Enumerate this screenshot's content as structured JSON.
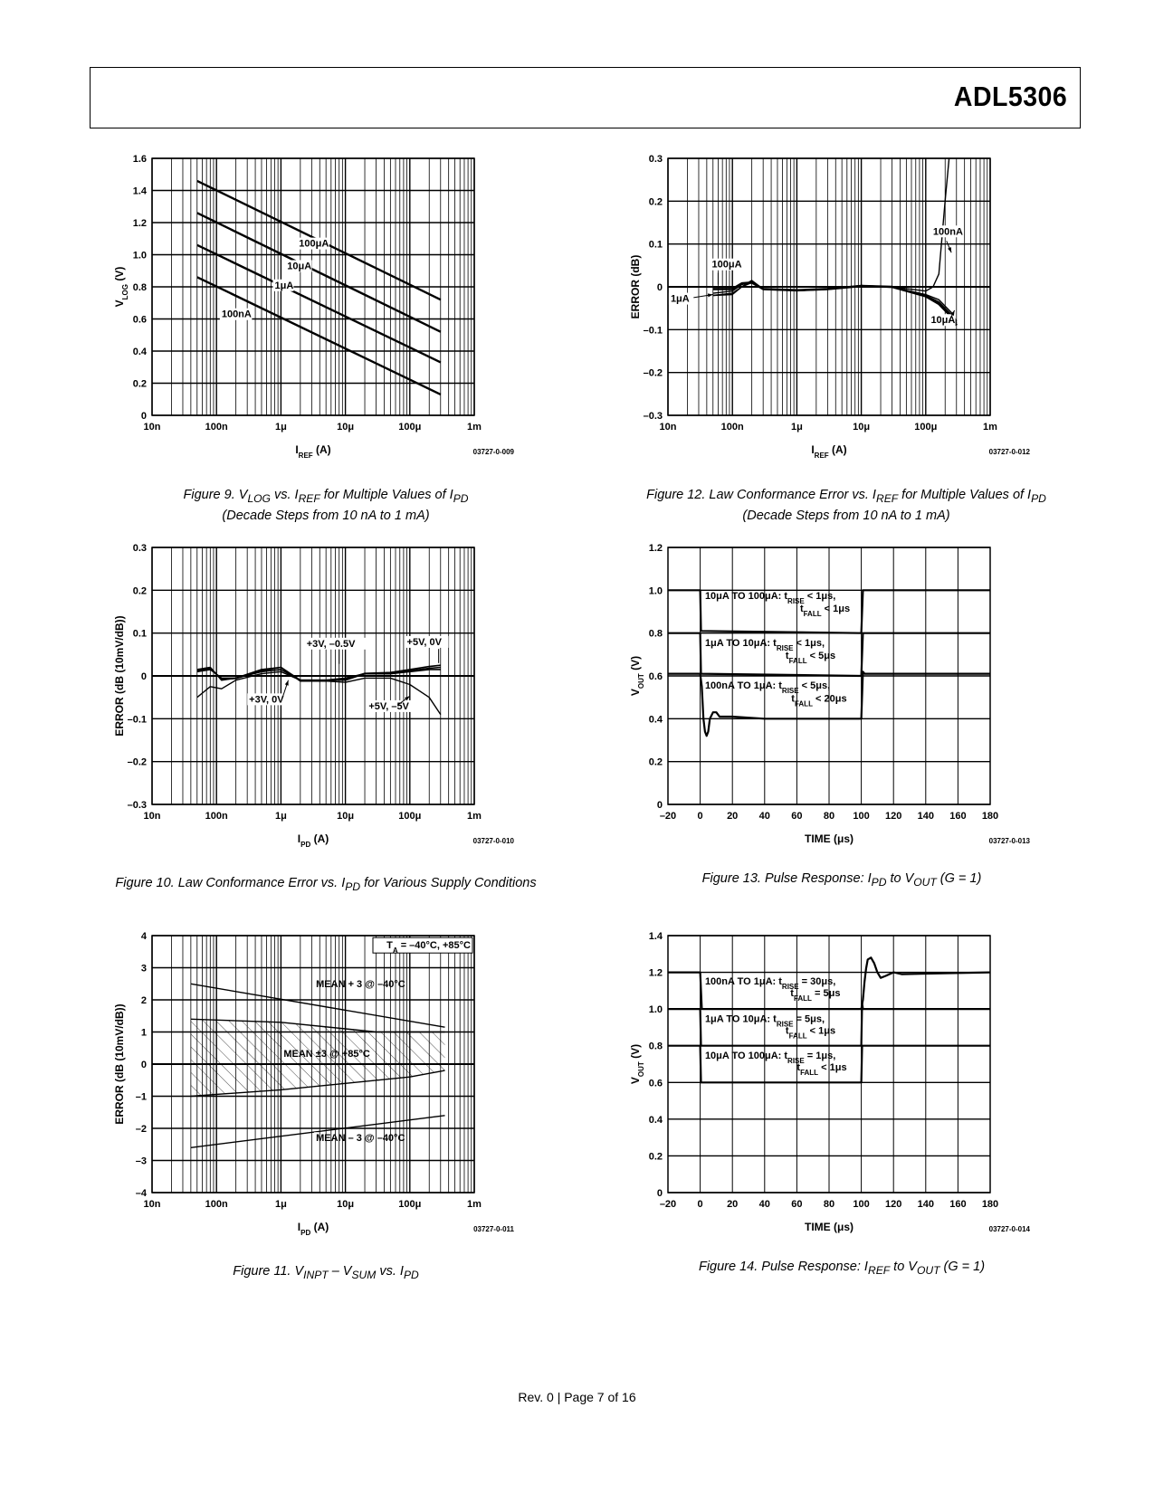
{
  "header": {
    "part_number": "ADL5306"
  },
  "footer": {
    "text": "Rev. 0 | Page 7 of 16"
  },
  "figures": [
    {
      "id": "fig9",
      "caption_html": "Figure 9. V<sub>LOG</sub> vs. I<sub>REF</sub> for Multiple Values of I<sub>PD</sub><br>(Decade Steps from 10 nA to 1 mA)",
      "code": "03727-0-009",
      "xlabel_html": "I<tspan baseline-shift='sub' font-size='8'>REF</tspan> (A)",
      "ylabel_html": "V<tspan baseline-shift='sub' font-size='8'>LOG</tspan> (V)"
    },
    {
      "id": "fig12",
      "caption_html": "Figure 12. Law Conformance Error vs. I<sub>REF</sub> for Multiple Values of I<sub>PD</sub><br>(Decade Steps from 10 nA to 1 mA)",
      "code": "03727-0-012",
      "xlabel_html": "I<tspan baseline-shift='sub' font-size='8'>REF</tspan> (A)",
      "ylabel_html": "ERROR (dB)"
    },
    {
      "id": "fig10",
      "caption_html": "Figure 10. Law Conformance Error vs. I<sub>PD</sub> for Various Supply Conditions",
      "code": "03727-0-010",
      "xlabel_html": "I<tspan baseline-shift='sub' font-size='8'>PD</tspan> (A)",
      "ylabel_html": "ERROR (dB (10mV/dB))"
    },
    {
      "id": "fig13",
      "caption_html": "Figure 13. Pulse Response: I<sub>PD</sub> to V<sub>OUT</sub> (G = 1)",
      "code": "03727-0-013",
      "xlabel_html": "TIME (μs)",
      "ylabel_html": "V<tspan baseline-shift='sub' font-size='8'>OUT</tspan> (V)"
    },
    {
      "id": "fig11",
      "caption_html": "Figure 11. V<sub>INPT</sub> – V<sub>SUM</sub> vs. I<sub>PD</sub>",
      "code": "03727-0-011",
      "xlabel_html": "I<tspan baseline-shift='sub' font-size='8'>PD</tspan> (A)",
      "ylabel_html": "ERROR (dB (10mV/dB))"
    },
    {
      "id": "fig14",
      "caption_html": "Figure 14. Pulse Response: I<sub>REF</sub> to V<sub>OUT</sub> (G = 1)",
      "code": "03727-0-014",
      "xlabel_html": "TIME (μs)",
      "ylabel_html": "V<tspan baseline-shift='sub' font-size='8'>OUT</tspan> (V)"
    }
  ],
  "chart_data": [
    {
      "id": "fig9",
      "type": "line",
      "xscale": "log",
      "xlim": [
        1e-08,
        0.001
      ],
      "ylim": [
        0,
        1.6
      ],
      "xticks": [
        [
          "10n",
          1e-08
        ],
        [
          "100n",
          1e-07
        ],
        [
          "1μ",
          1e-06
        ],
        [
          "10μ",
          1e-05
        ],
        [
          "100μ",
          0.0001
        ],
        [
          "1m",
          0.001
        ]
      ],
      "yticks": [
        [
          "0",
          0
        ],
        [
          "0.2",
          0.2
        ],
        [
          "0.4",
          0.4
        ],
        [
          "0.6",
          0.6
        ],
        [
          "0.8",
          0.8
        ],
        [
          "1.0",
          1.0
        ],
        [
          "1.2",
          1.2
        ],
        [
          "1.4",
          1.4
        ],
        [
          "1.6",
          1.6
        ]
      ],
      "series": [
        {
          "name": "100μA",
          "x": [
            5e-08,
            0.0003
          ],
          "y": [
            1.46,
            0.72
          ]
        },
        {
          "name": "10μA",
          "x": [
            5e-08,
            0.0003
          ],
          "y": [
            1.26,
            0.52
          ]
        },
        {
          "name": "1μA",
          "x": [
            5e-08,
            0.0003
          ],
          "y": [
            1.06,
            0.33
          ]
        },
        {
          "name": "100nA",
          "x": [
            5e-08,
            0.0003
          ],
          "y": [
            0.86,
            0.13
          ]
        }
      ]
    },
    {
      "id": "fig12",
      "type": "line",
      "xscale": "log",
      "xlim": [
        1e-08,
        0.001
      ],
      "ylim": [
        -0.3,
        0.3
      ],
      "xticks": [
        [
          "10n",
          1e-08
        ],
        [
          "100n",
          1e-07
        ],
        [
          "1μ",
          1e-06
        ],
        [
          "10μ",
          1e-05
        ],
        [
          "100μ",
          0.0001
        ],
        [
          "1m",
          0.001
        ]
      ],
      "yticks": [
        [
          "–0.3",
          -0.3
        ],
        [
          "–0.2",
          -0.2
        ],
        [
          "–0.1",
          -0.1
        ],
        [
          "0",
          0
        ],
        [
          "0.1",
          0.1
        ],
        [
          "0.2",
          0.2
        ],
        [
          "0.3",
          0.3
        ]
      ],
      "series": [
        {
          "name": "100nA",
          "x": [
            5e-08,
            1e-07,
            1.4e-07,
            2e-07,
            3e-07,
            1e-06,
            3e-06,
            1e-05,
            3e-05,
            0.0001,
            0.00013,
            0.00016,
            0.0002,
            0.00023
          ],
          "y": [
            -0.02,
            -0.015,
            0,
            0.015,
            -0.005,
            -0.008,
            -0.005,
            0.003,
            0,
            -0.01,
            0.0,
            0.03,
            0.2,
            0.3
          ]
        },
        {
          "name": "10μA",
          "x": [
            5e-08,
            1e-07,
            1.4e-07,
            2e-07,
            3e-07,
            1e-06,
            3e-06,
            1e-05,
            3e-05,
            0.0001,
            0.00016,
            0.00025,
            0.0003
          ],
          "y": [
            -0.015,
            -0.01,
            0.005,
            0.012,
            -0.005,
            -0.008,
            -0.005,
            0.003,
            0,
            -0.02,
            -0.035,
            -0.065,
            -0.085
          ]
        },
        {
          "name": "100μA",
          "x": [
            5e-08,
            1e-07,
            1.4e-07,
            2e-07,
            3e-07,
            1e-06,
            3e-06,
            1e-05,
            3e-05,
            0.0001,
            0.00016,
            0.00025,
            0.0003
          ],
          "y": [
            -0.005,
            -0.005,
            0.008,
            0.01,
            -0.005,
            -0.008,
            -0.005,
            0.002,
            0,
            -0.022,
            -0.04,
            -0.07,
            -0.09
          ]
        },
        {
          "name": "1μA",
          "x": [
            5e-08,
            1e-07,
            1.4e-07,
            2e-07,
            3e-07,
            1e-06,
            3e-06,
            1e-05,
            3e-05,
            0.0001,
            0.00016,
            0.00025,
            0.0003
          ],
          "y": [
            -0.02,
            -0.018,
            0.0,
            0.01,
            -0.006,
            -0.009,
            -0.006,
            0.002,
            -0.001,
            -0.018,
            -0.03,
            -0.06,
            -0.08
          ]
        }
      ]
    },
    {
      "id": "fig10",
      "type": "line",
      "xscale": "log",
      "xlim": [
        1e-08,
        0.001
      ],
      "ylim": [
        -0.3,
        0.3
      ],
      "xticks": [
        [
          "10n",
          1e-08
        ],
        [
          "100n",
          1e-07
        ],
        [
          "1μ",
          1e-06
        ],
        [
          "10μ",
          1e-05
        ],
        [
          "100μ",
          0.0001
        ],
        [
          "1m",
          0.001
        ]
      ],
      "yticks": [
        [
          "–0.3",
          -0.3
        ],
        [
          "–0.2",
          -0.2
        ],
        [
          "–0.1",
          -0.1
        ],
        [
          "0",
          0
        ],
        [
          "0.1",
          0.1
        ],
        [
          "0.2",
          0.2
        ],
        [
          "0.3",
          0.3
        ]
      ],
      "series": [
        {
          "name": "+3V, 0V",
          "x": [
            5e-08,
            8e-08,
            1.2e-07,
            2e-07,
            5e-07,
            1e-06,
            2e-06,
            5e-06,
            1e-05,
            2e-05,
            5e-05,
            0.0001,
            0.0002,
            0.0003
          ],
          "y": [
            0.01,
            0.015,
            -0.005,
            -0.005,
            0.01,
            0.015,
            -0.01,
            -0.01,
            -0.01,
            0.005,
            0.005,
            0.01,
            0.015,
            0.015
          ]
        },
        {
          "name": "+3V, –0.5V",
          "x": [
            5e-08,
            8e-08,
            1.2e-07,
            2e-07,
            5e-07,
            1e-06,
            2e-06,
            5e-06,
            1e-05,
            2e-05,
            5e-05,
            0.0001,
            0.0002,
            0.0003
          ],
          "y": [
            0.015,
            0.02,
            -0.01,
            -0.005,
            0.015,
            0.02,
            -0.01,
            -0.01,
            -0.005,
            0.005,
            0.005,
            0.012,
            0.018,
            0.02
          ]
        },
        {
          "name": "+5V, 0V",
          "x": [
            5e-08,
            8e-08,
            1.2e-07,
            2e-07,
            5e-07,
            1e-06,
            2e-06,
            5e-06,
            1e-05,
            2e-05,
            5e-05,
            0.0001,
            0.0002,
            0.0003
          ],
          "y": [
            0.012,
            0.018,
            -0.008,
            -0.006,
            0.012,
            0.02,
            -0.012,
            -0.012,
            -0.008,
            0.006,
            0.008,
            0.015,
            0.022,
            0.025
          ]
        },
        {
          "name": "+5V, –5V",
          "x": [
            5e-08,
            8e-08,
            1.2e-07,
            2e-07,
            5e-07,
            1e-06,
            2e-06,
            5e-06,
            1e-05,
            2e-05,
            5e-05,
            0.0001,
            0.0002,
            0.0003
          ],
          "y": [
            -0.05,
            -0.025,
            -0.03,
            -0.01,
            0.005,
            0.01,
            -0.01,
            -0.012,
            -0.015,
            -0.005,
            -0.005,
            -0.02,
            -0.05,
            -0.09
          ]
        }
      ],
      "annotations": [
        "+3V, –0.5V",
        "+5V, 0V",
        "+3V, 0V",
        "+5V, –5V"
      ]
    },
    {
      "id": "fig13",
      "type": "line",
      "xlim": [
        -20,
        180
      ],
      "ylim": [
        0,
        1.2
      ],
      "xticks": [
        [
          "–20",
          -20
        ],
        [
          "0",
          0
        ],
        [
          "20",
          20
        ],
        [
          "40",
          40
        ],
        [
          "60",
          60
        ],
        [
          "80",
          80
        ],
        [
          "100",
          100
        ],
        [
          "120",
          120
        ],
        [
          "140",
          140
        ],
        [
          "160",
          160
        ],
        [
          "180",
          180
        ]
      ],
      "yticks": [
        [
          "0",
          0
        ],
        [
          "0.2",
          0.2
        ],
        [
          "0.4",
          0.4
        ],
        [
          "0.6",
          0.6
        ],
        [
          "0.8",
          0.8
        ],
        [
          "1.0",
          1.0
        ],
        [
          "1.2",
          1.2
        ]
      ],
      "series": [
        {
          "name": "10μA TO 100μA",
          "x": [
            -20,
            0,
            0.5,
            1,
            100,
            101,
            180
          ],
          "y": [
            1.0,
            1.0,
            0.81,
            0.81,
            0.8,
            1.0,
            1.0
          ]
        },
        {
          "name": "1μA TO 10μA",
          "x": [
            -20,
            0,
            0.5,
            1,
            100,
            101,
            180
          ],
          "y": [
            0.8,
            0.8,
            0.61,
            0.61,
            0.6,
            0.8,
            0.8
          ]
        },
        {
          "name": "100nA TO 1μA",
          "x": [
            -20,
            0,
            1,
            2,
            3,
            4,
            5,
            6,
            8,
            10,
            12,
            15,
            20,
            40,
            100,
            101,
            102,
            180
          ],
          "y": [
            0.61,
            0.61,
            0.55,
            0.4,
            0.34,
            0.32,
            0.34,
            0.4,
            0.43,
            0.43,
            0.41,
            0.41,
            0.41,
            0.4,
            0.4,
            0.62,
            0.61,
            0.61
          ]
        }
      ],
      "annotations": [
        {
          "text": "10μA TO 100μA: tRISE < 1μs, tFALL < 1μs"
        },
        {
          "text": "1μA TO 10μA: tRISE < 1μs, tFALL < 5μs"
        },
        {
          "text": "100nA TO 1μA: tRISE < 5μs, tFALL < 20μs"
        }
      ]
    },
    {
      "id": "fig11",
      "type": "line",
      "xscale": "log",
      "xlim": [
        1e-08,
        0.001
      ],
      "ylim": [
        -4,
        4
      ],
      "xticks": [
        [
          "10n",
          1e-08
        ],
        [
          "100n",
          1e-07
        ],
        [
          "1μ",
          1e-06
        ],
        [
          "10μ",
          1e-05
        ],
        [
          "100μ",
          0.0001
        ],
        [
          "1m",
          0.001
        ]
      ],
      "yticks": [
        [
          "–4",
          -4
        ],
        [
          "–3",
          -3
        ],
        [
          "–2",
          -2
        ],
        [
          "–1",
          -1
        ],
        [
          "0",
          0
        ],
        [
          "1",
          1
        ],
        [
          "2",
          2
        ],
        [
          "3",
          3
        ],
        [
          "4",
          4
        ]
      ],
      "series": [
        {
          "name": "MEAN + 3 @ –40°C",
          "x": [
            4e-08,
            0.00035
          ],
          "y": [
            2.5,
            1.15
          ]
        },
        {
          "name": "MEAN – 3 @ –40°C",
          "x": [
            4e-08,
            0.00035
          ],
          "y": [
            -2.6,
            -1.6
          ]
        },
        {
          "name": "MEAN ±3 @ +85°C upper",
          "x": [
            4e-08,
            1e-06,
            1e-05,
            3e-05,
            0.00035
          ],
          "y": [
            1.4,
            1.3,
            1.1,
            1.0,
            1.0
          ]
        },
        {
          "name": "MEAN ±3 @ +85°C lower",
          "x": [
            4e-08,
            1e-06,
            1e-05,
            0.0001,
            0.00035
          ],
          "y": [
            -1.0,
            -0.8,
            -0.6,
            -0.4,
            -0.2
          ]
        }
      ],
      "annotations": [
        "TA = –40°C, +85°C",
        "MEAN + 3 @ –40°C",
        "MEAN ±3 @ +85°C",
        "MEAN – 3 @ –40°C"
      ]
    },
    {
      "id": "fig14",
      "type": "line",
      "xlim": [
        -20,
        180
      ],
      "ylim": [
        0,
        1.4
      ],
      "xticks": [
        [
          "–20",
          -20
        ],
        [
          "0",
          0
        ],
        [
          "20",
          20
        ],
        [
          "40",
          40
        ],
        [
          "60",
          60
        ],
        [
          "80",
          80
        ],
        [
          "100",
          100
        ],
        [
          "120",
          120
        ],
        [
          "140",
          140
        ],
        [
          "160",
          160
        ],
        [
          "180",
          180
        ]
      ],
      "yticks": [
        [
          "0",
          0
        ],
        [
          "0.2",
          0.2
        ],
        [
          "0.4",
          0.4
        ],
        [
          "0.6",
          0.6
        ],
        [
          "0.8",
          0.8
        ],
        [
          "1.0",
          1.0
        ],
        [
          "1.2",
          1.2
        ],
        [
          "1.4",
          1.4
        ]
      ],
      "series": [
        {
          "name": "100nA TO 1μA",
          "x": [
            -20,
            0,
            1,
            2,
            100,
            101,
            102,
            103,
            104,
            106,
            108,
            110,
            112,
            115,
            120,
            125,
            180
          ],
          "y": [
            1.2,
            1.2,
            1.0,
            1.0,
            1.0,
            1.05,
            1.15,
            1.22,
            1.27,
            1.28,
            1.25,
            1.2,
            1.17,
            1.18,
            1.2,
            1.19,
            1.2
          ]
        },
        {
          "name": "1μA TO 10μA",
          "x": [
            -20,
            0,
            0.5,
            1,
            100,
            100.5,
            101,
            180
          ],
          "y": [
            1.0,
            1.0,
            0.8,
            0.8,
            0.8,
            1.03,
            1.0,
            1.0
          ]
        },
        {
          "name": "10μA TO 100μA",
          "x": [
            -20,
            0,
            0.5,
            1,
            100,
            100.5,
            180
          ],
          "y": [
            0.8,
            0.8,
            0.6,
            0.6,
            0.6,
            0.8,
            0.8
          ]
        }
      ],
      "annotations": [
        {
          "text": "100nA TO 1μA: tRISE = 30μs, tFALL = 5μs"
        },
        {
          "text": "1μA TO 10μA: tRISE = 5μs, tFALL < 1μs"
        },
        {
          "text": "10μA TO 100μA: tRISE = 1μs, tFALL < 1μs"
        }
      ]
    }
  ]
}
